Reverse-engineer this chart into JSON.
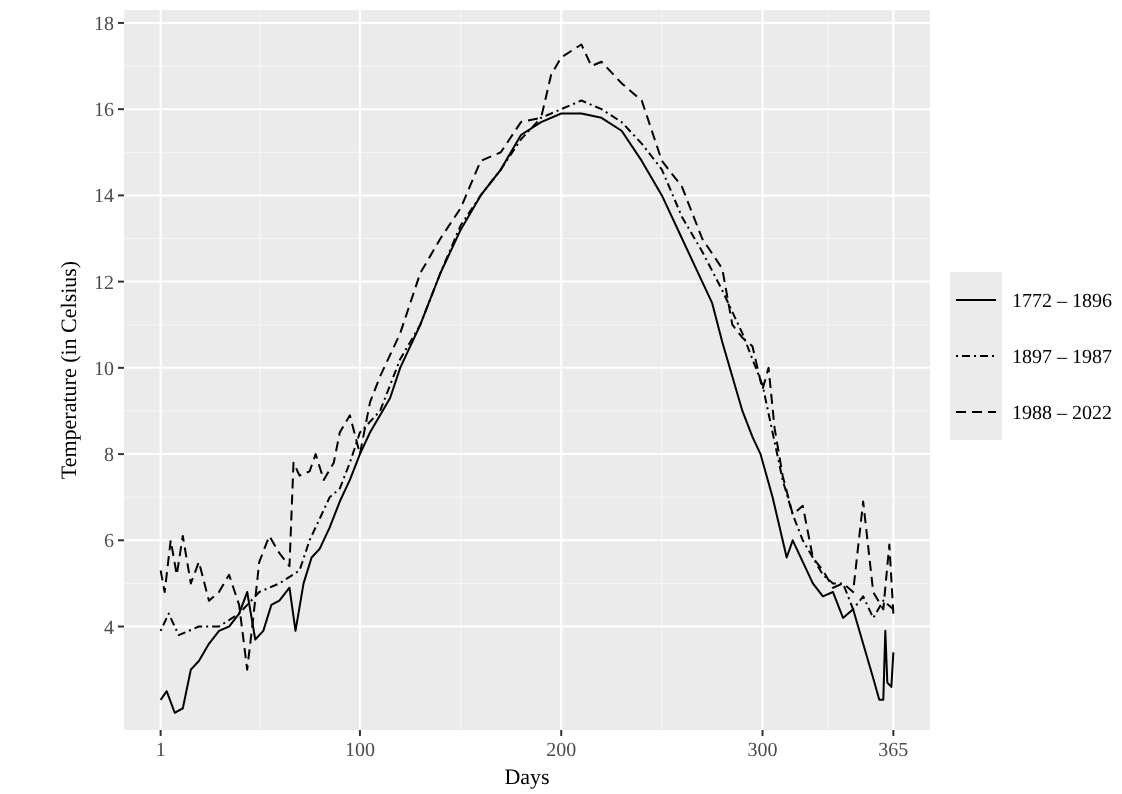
{
  "chart_data": {
    "type": "line",
    "xlabel": "Days",
    "ylabel": "Temperature (in Celsius)",
    "xlim": [
      -17.2,
      383.2
    ],
    "ylim": [
      1.6,
      18.3
    ],
    "xticks": [
      1,
      100,
      200,
      300,
      365
    ],
    "yticks": [
      4,
      6,
      8,
      10,
      12,
      14,
      16,
      18
    ],
    "grid": true,
    "legend": "right",
    "marker": "none",
    "series": [
      {
        "name": "1772 – 1896",
        "color": "#000000",
        "line_style": "solid",
        "x": [
          1,
          4,
          8,
          12,
          16,
          20,
          25,
          30,
          35,
          40,
          44,
          48,
          52,
          56,
          60,
          65,
          68,
          72,
          76,
          80,
          85,
          90,
          95,
          100,
          105,
          110,
          115,
          120,
          130,
          140,
          150,
          160,
          170,
          180,
          190,
          200,
          210,
          220,
          230,
          240,
          250,
          260,
          270,
          275,
          280,
          285,
          290,
          295,
          299,
          305,
          310,
          312,
          315,
          320,
          325,
          330,
          335,
          340,
          345,
          350,
          355,
          358,
          360,
          361,
          362,
          364,
          365
        ],
        "values": [
          2.3,
          2.5,
          2.0,
          2.1,
          3.0,
          3.2,
          3.6,
          3.9,
          4.0,
          4.3,
          4.8,
          3.7,
          3.9,
          4.5,
          4.6,
          4.9,
          3.9,
          5.0,
          5.6,
          5.8,
          6.3,
          6.9,
          7.4,
          8.0,
          8.5,
          8.9,
          9.3,
          10.0,
          11.0,
          12.2,
          13.2,
          14.0,
          14.6,
          15.4,
          15.7,
          15.9,
          15.9,
          15.8,
          15.5,
          14.8,
          14.0,
          13.0,
          12.0,
          11.5,
          10.6,
          9.8,
          9.0,
          8.4,
          8.0,
          7.0,
          6.0,
          5.6,
          6.0,
          5.5,
          5.0,
          4.7,
          4.8,
          4.2,
          4.4,
          3.6,
          2.8,
          2.3,
          2.3,
          3.9,
          2.7,
          2.6,
          3.4
        ]
      },
      {
        "name": "1897 – 1987",
        "color": "#000000",
        "line_style": "dashdot",
        "x": [
          1,
          5,
          10,
          20,
          30,
          40,
          50,
          60,
          70,
          75,
          80,
          85,
          90,
          95,
          100,
          110,
          120,
          130,
          140,
          150,
          160,
          170,
          180,
          190,
          200,
          210,
          220,
          230,
          240,
          250,
          260,
          270,
          280,
          290,
          300,
          305,
          310,
          315,
          320,
          325,
          330,
          335,
          340,
          345,
          350,
          355,
          360,
          365
        ],
        "values": [
          3.9,
          4.3,
          3.8,
          4.0,
          4.0,
          4.3,
          4.8,
          5.0,
          5.3,
          6.0,
          6.5,
          7.0,
          7.2,
          7.8,
          8.5,
          9.0,
          10.2,
          11.0,
          12.2,
          13.3,
          14.0,
          14.6,
          15.3,
          15.8,
          16.0,
          16.2,
          16.0,
          15.7,
          15.2,
          14.6,
          13.5,
          12.7,
          11.8,
          10.8,
          9.6,
          8.5,
          7.4,
          6.6,
          6.0,
          5.6,
          5.2,
          5.0,
          5.0,
          4.4,
          4.7,
          4.2,
          4.6,
          4.4
        ]
      },
      {
        "name": "1988 – 2022",
        "color": "#000000",
        "line_style": "dashed",
        "x": [
          1,
          3,
          6,
          9,
          12,
          16,
          20,
          25,
          30,
          35,
          40,
          44,
          47,
          50,
          55,
          60,
          65,
          67,
          70,
          75,
          78,
          82,
          87,
          90,
          95,
          100,
          105,
          110,
          120,
          125,
          130,
          140,
          150,
          160,
          170,
          180,
          190,
          195,
          200,
          210,
          215,
          220,
          230,
          240,
          245,
          250,
          260,
          270,
          280,
          285,
          290,
          295,
          300,
          303,
          306,
          310,
          315,
          320,
          325,
          330,
          335,
          340,
          345,
          350,
          355,
          360,
          363,
          365
        ],
        "values": [
          5.3,
          4.8,
          6.0,
          5.2,
          6.1,
          5.0,
          5.5,
          4.6,
          4.8,
          5.2,
          4.5,
          3.0,
          4.2,
          5.5,
          6.1,
          5.7,
          5.4,
          7.8,
          7.5,
          7.6,
          8.0,
          7.4,
          7.8,
          8.5,
          8.9,
          8.0,
          9.2,
          9.8,
          10.8,
          11.5,
          12.2,
          13.0,
          13.7,
          14.8,
          15.0,
          15.7,
          15.8,
          16.8,
          17.2,
          17.5,
          17.0,
          17.1,
          16.6,
          16.2,
          15.5,
          14.8,
          14.2,
          13.0,
          12.3,
          11.0,
          10.7,
          10.5,
          9.5,
          10.0,
          8.6,
          7.5,
          6.6,
          6.8,
          5.6,
          5.3,
          4.9,
          5.0,
          4.8,
          6.9,
          4.8,
          4.4,
          5.9,
          4.3
        ]
      }
    ]
  }
}
